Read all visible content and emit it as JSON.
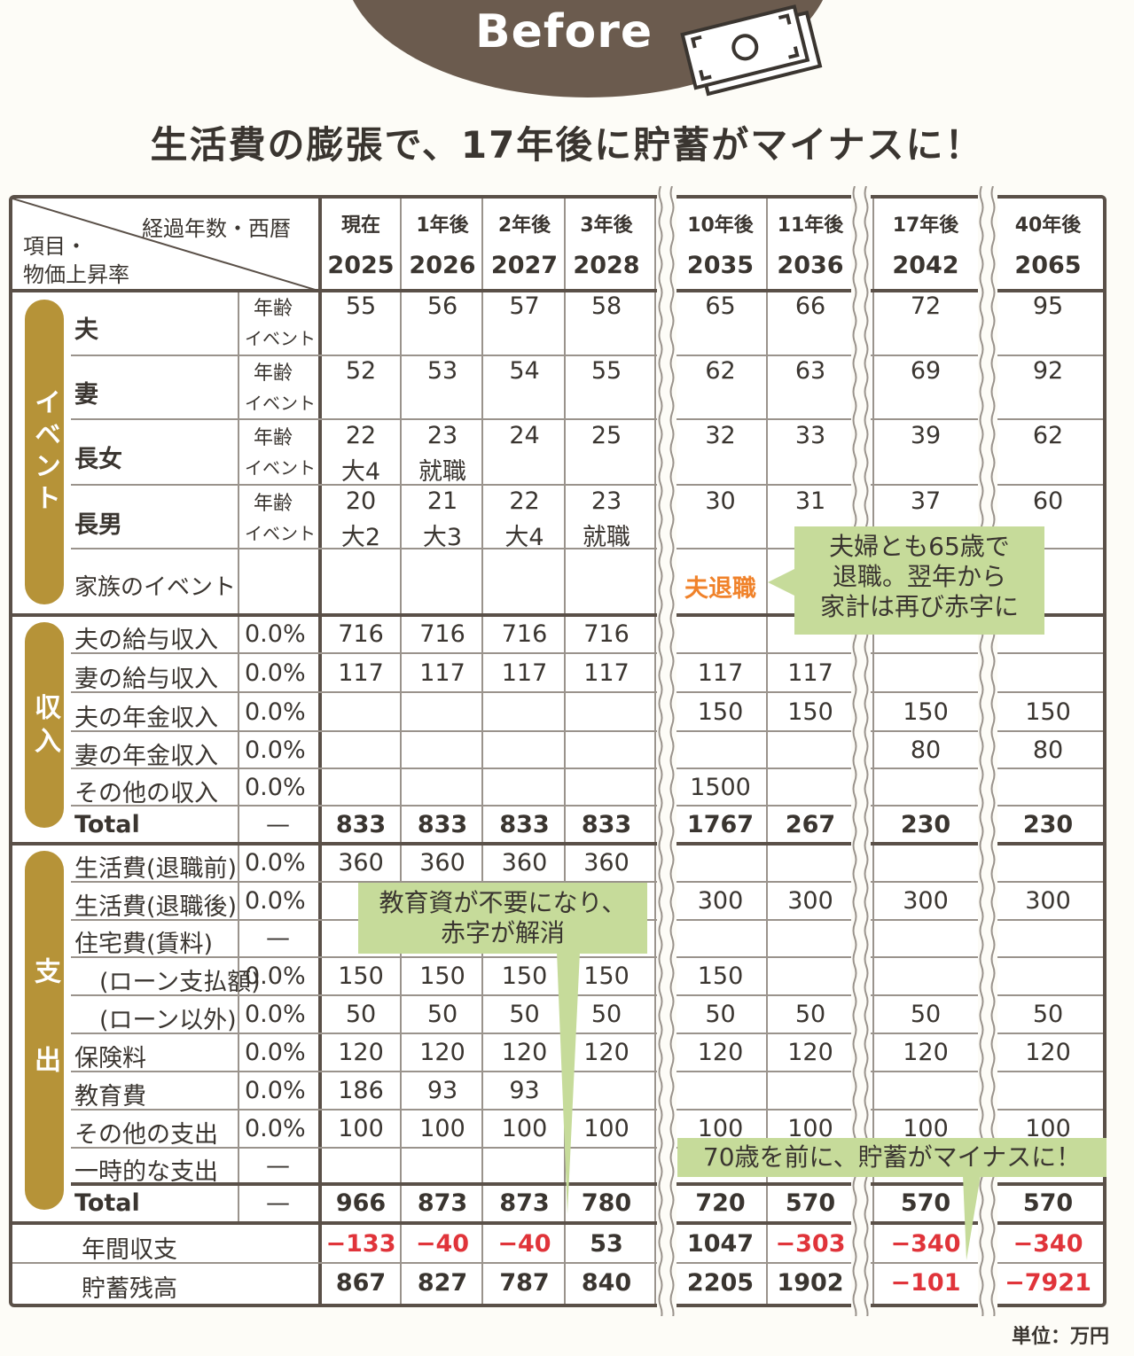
{
  "badge": {
    "label": "Before"
  },
  "headline": "生活費の膨張で、17年後に貯蓄がマイナスに！",
  "corner": {
    "top": "経過年数・西暦",
    "left1": "項目・",
    "left2": "物価上昇率"
  },
  "columns": [
    {
      "label": "現在",
      "year": "2025"
    },
    {
      "label": "1年後",
      "year": "2026"
    },
    {
      "label": "2年後",
      "year": "2027"
    },
    {
      "label": "3年後",
      "year": "2028"
    },
    {
      "label": "10年後",
      "year": "2035"
    },
    {
      "label": "11年後",
      "year": "2036"
    },
    {
      "label": "17年後",
      "year": "2042"
    },
    {
      "label": "40年後",
      "year": "2065"
    }
  ],
  "sections": {
    "event": "イベント",
    "income": "収入",
    "expense": "支出"
  },
  "event_sub": {
    "age": "年齢",
    "event": "イベント"
  },
  "people": [
    {
      "name": "夫",
      "ages": [
        "55",
        "56",
        "57",
        "58",
        "65",
        "66",
        "72",
        "95"
      ],
      "events": [
        "",
        "",
        "",
        "",
        "",
        "",
        "",
        ""
      ]
    },
    {
      "name": "妻",
      "ages": [
        "52",
        "53",
        "54",
        "55",
        "62",
        "63",
        "69",
        "92"
      ],
      "events": [
        "",
        "",
        "",
        "",
        "",
        "",
        "",
        ""
      ]
    },
    {
      "name": "長女",
      "ages": [
        "22",
        "23",
        "24",
        "25",
        "32",
        "33",
        "39",
        "62"
      ],
      "events": [
        "大4",
        "就職",
        "",
        "",
        "",
        "",
        "",
        ""
      ]
    },
    {
      "name": "長男",
      "ages": [
        "20",
        "21",
        "22",
        "23",
        "30",
        "31",
        "37",
        "60"
      ],
      "events": [
        "大2",
        "大3",
        "大4",
        "就職",
        "",
        "",
        "",
        ""
      ]
    }
  ],
  "family_event": {
    "label": "家族のイベント",
    "values": [
      "",
      "",
      "",
      "",
      "夫退職",
      "",
      "",
      ""
    ]
  },
  "income_rows": [
    {
      "label": "夫の給与収入",
      "rate": "0.0%",
      "values": [
        "716",
        "716",
        "716",
        "716",
        "",
        "",
        "",
        ""
      ]
    },
    {
      "label": "妻の給与収入",
      "rate": "0.0%",
      "values": [
        "117",
        "117",
        "117",
        "117",
        "117",
        "117",
        "",
        ""
      ]
    },
    {
      "label": "夫の年金収入",
      "rate": "0.0%",
      "values": [
        "",
        "",
        "",
        "",
        "150",
        "150",
        "150",
        "150"
      ]
    },
    {
      "label": "妻の年金収入",
      "rate": "0.0%",
      "values": [
        "",
        "",
        "",
        "",
        "",
        "",
        "80",
        "80"
      ]
    },
    {
      "label": "その他の収入",
      "rate": "0.0%",
      "values": [
        "",
        "",
        "",
        "",
        "1500",
        "",
        "",
        ""
      ]
    }
  ],
  "income_total": {
    "label": "Total",
    "rate": "—",
    "values": [
      "833",
      "833",
      "833",
      "833",
      "1767",
      "267",
      "230",
      "230"
    ]
  },
  "expense_rows": [
    {
      "label": "生活費(退職前)",
      "rate": "0.0%",
      "values": [
        "360",
        "360",
        "360",
        "360",
        "",
        "",
        "",
        ""
      ]
    },
    {
      "label": "生活費(退職後)",
      "rate": "0.0%",
      "values": [
        "",
        "",
        "",
        "",
        "300",
        "300",
        "300",
        "300"
      ]
    },
    {
      "label": "住宅費(賃料)",
      "rate": "—",
      "values": [
        "",
        "",
        "",
        "",
        "",
        "",
        "",
        ""
      ]
    },
    {
      "label": "(ローン支払額)",
      "rate": "0.0%",
      "values": [
        "150",
        "150",
        "150",
        "150",
        "150",
        "",
        "",
        ""
      ]
    },
    {
      "label": "(ローン以外)",
      "rate": "0.0%",
      "values": [
        "50",
        "50",
        "50",
        "50",
        "50",
        "50",
        "50",
        "50"
      ]
    },
    {
      "label": "保険料",
      "rate": "0.0%",
      "values": [
        "120",
        "120",
        "120",
        "120",
        "120",
        "120",
        "120",
        "120"
      ]
    },
    {
      "label": "教育費",
      "rate": "0.0%",
      "values": [
        "186",
        "93",
        "93",
        "",
        "",
        "",
        "",
        ""
      ]
    },
    {
      "label": "その他の支出",
      "rate": "0.0%",
      "values": [
        "100",
        "100",
        "100",
        "100",
        "100",
        "100",
        "100",
        "100"
      ]
    },
    {
      "label": "一時的な支出",
      "rate": "—",
      "values": [
        "",
        "",
        "",
        "",
        "",
        "",
        "",
        ""
      ]
    }
  ],
  "expense_total": {
    "label": "Total",
    "rate": "—",
    "values": [
      "966",
      "873",
      "873",
      "780",
      "720",
      "570",
      "570",
      "570"
    ]
  },
  "balance": {
    "label": "年間収支",
    "values": [
      "−133",
      "−40",
      "−40",
      "53",
      "1047",
      "−303",
      "−340",
      "−340"
    ],
    "negative": [
      true,
      true,
      true,
      false,
      false,
      true,
      true,
      true
    ]
  },
  "savings": {
    "label": "貯蓄残高",
    "values": [
      "867",
      "827",
      "787",
      "840",
      "2205",
      "1902",
      "−101",
      "−7921"
    ],
    "negative": [
      false,
      false,
      false,
      false,
      false,
      false,
      true,
      true
    ]
  },
  "callouts": {
    "retire": [
      "夫婦とも65歳で",
      "退職。翌年から",
      "家計は再び赤字に"
    ],
    "education": [
      "教育資が不要になり、",
      "赤字が解消"
    ],
    "minus": "70歳を前に、貯蓄がマイナスに！"
  },
  "unit": "単位：万円",
  "colors": {
    "brown": "#6b5b4e",
    "gold": "#b69338",
    "green": "#c6db9a",
    "red": "#e0343a",
    "orange": "#f0822a"
  }
}
